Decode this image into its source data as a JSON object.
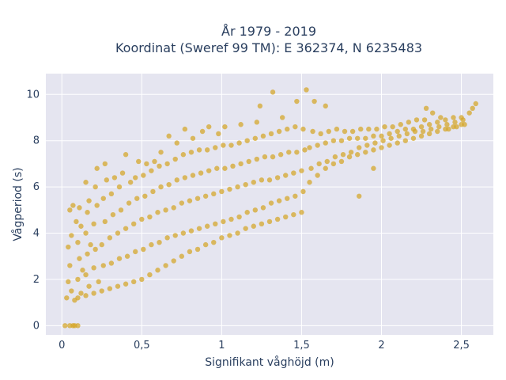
{
  "chart_data": {
    "type": "scatter",
    "title": [
      "År 1979 - 2019",
      "Koordinat (Sweref 99 TM): E 362374, N 6235483"
    ],
    "xlabel": "Signifikant våghöjd (m)",
    "ylabel": "Vågperiod (s)",
    "xlim": [
      -0.1,
      2.7
    ],
    "ylim": [
      -0.4,
      10.9
    ],
    "x_ticks": [
      0,
      0.5,
      1,
      1.5,
      2,
      2.5
    ],
    "x_tick_labels": [
      "0",
      "0,5",
      "1",
      "1,5",
      "2",
      "2,5"
    ],
    "y_ticks": [
      0,
      2,
      4,
      6,
      8,
      10
    ],
    "y_tick_labels": [
      "0",
      "2",
      "4",
      "6",
      "8",
      "10"
    ],
    "grid": true,
    "colors": {
      "marker": "#d4a526",
      "plot_background": "#e5e5f0",
      "grid": "#ffffff",
      "text": "#2a3f5f"
    },
    "series": [
      {
        "values": [
          [
            0.02,
            0.0
          ],
          [
            0.05,
            0.0
          ],
          [
            0.07,
            0.0
          ],
          [
            0.08,
            0.0
          ],
          [
            0.1,
            0.0
          ],
          [
            0.03,
            1.2
          ],
          [
            0.04,
            1.9
          ],
          [
            0.05,
            2.6
          ],
          [
            0.04,
            3.4
          ],
          [
            0.06,
            3.9
          ],
          [
            0.05,
            5.0
          ],
          [
            0.07,
            5.2
          ],
          [
            0.08,
            1.1
          ],
          [
            0.06,
            1.5
          ],
          [
            0.09,
            4.5
          ],
          [
            0.1,
            1.2
          ],
          [
            0.1,
            2.0
          ],
          [
            0.11,
            2.9
          ],
          [
            0.1,
            3.6
          ],
          [
            0.12,
            4.3
          ],
          [
            0.11,
            5.1
          ],
          [
            0.12,
            1.4
          ],
          [
            0.13,
            2.4
          ],
          [
            0.15,
            1.3
          ],
          [
            0.15,
            2.2
          ],
          [
            0.16,
            3.1
          ],
          [
            0.15,
            4.0
          ],
          [
            0.16,
            4.9
          ],
          [
            0.17,
            5.4
          ],
          [
            0.15,
            6.2
          ],
          [
            0.17,
            1.7
          ],
          [
            0.18,
            3.5
          ],
          [
            0.2,
            1.4
          ],
          [
            0.2,
            2.5
          ],
          [
            0.21,
            3.3
          ],
          [
            0.2,
            4.4
          ],
          [
            0.22,
            5.2
          ],
          [
            0.21,
            6.0
          ],
          [
            0.22,
            6.8
          ],
          [
            0.23,
            1.9
          ],
          [
            0.25,
            1.5
          ],
          [
            0.26,
            2.6
          ],
          [
            0.25,
            3.5
          ],
          [
            0.27,
            4.5
          ],
          [
            0.26,
            5.5
          ],
          [
            0.28,
            6.3
          ],
          [
            0.27,
            7.0
          ],
          [
            0.3,
            1.6
          ],
          [
            0.31,
            2.7
          ],
          [
            0.3,
            3.8
          ],
          [
            0.32,
            4.8
          ],
          [
            0.31,
            5.7
          ],
          [
            0.33,
            6.4
          ],
          [
            0.35,
            1.7
          ],
          [
            0.36,
            2.9
          ],
          [
            0.35,
            4.0
          ],
          [
            0.37,
            5.0
          ],
          [
            0.36,
            6.0
          ],
          [
            0.38,
            6.6
          ],
          [
            0.4,
            7.4
          ],
          [
            0.4,
            1.8
          ],
          [
            0.41,
            3.0
          ],
          [
            0.4,
            4.2
          ],
          [
            0.42,
            5.3
          ],
          [
            0.43,
            6.2
          ],
          [
            0.45,
            1.9
          ],
          [
            0.46,
            3.2
          ],
          [
            0.45,
            4.4
          ],
          [
            0.47,
            5.5
          ],
          [
            0.46,
            6.4
          ],
          [
            0.48,
            7.1
          ],
          [
            0.5,
            2.0
          ],
          [
            0.51,
            3.3
          ],
          [
            0.5,
            4.6
          ],
          [
            0.52,
            5.6
          ],
          [
            0.51,
            6.5
          ],
          [
            0.53,
            7.0
          ],
          [
            0.55,
            2.2
          ],
          [
            0.56,
            3.5
          ],
          [
            0.55,
            4.7
          ],
          [
            0.57,
            5.8
          ],
          [
            0.56,
            6.7
          ],
          [
            0.58,
            7.1
          ],
          [
            0.6,
            2.4
          ],
          [
            0.61,
            3.6
          ],
          [
            0.6,
            4.9
          ],
          [
            0.62,
            6.0
          ],
          [
            0.61,
            6.9
          ],
          [
            0.62,
            7.5
          ],
          [
            0.65,
            2.6
          ],
          [
            0.66,
            3.8
          ],
          [
            0.65,
            5.0
          ],
          [
            0.67,
            6.1
          ],
          [
            0.66,
            7.0
          ],
          [
            0.67,
            8.2
          ],
          [
            0.7,
            2.8
          ],
          [
            0.71,
            3.9
          ],
          [
            0.7,
            5.1
          ],
          [
            0.72,
            6.3
          ],
          [
            0.71,
            7.2
          ],
          [
            0.72,
            7.9
          ],
          [
            0.75,
            3.0
          ],
          [
            0.76,
            4.0
          ],
          [
            0.75,
            5.3
          ],
          [
            0.77,
            6.4
          ],
          [
            0.76,
            7.4
          ],
          [
            0.77,
            8.5
          ],
          [
            0.8,
            3.2
          ],
          [
            0.81,
            4.1
          ],
          [
            0.8,
            5.4
          ],
          [
            0.82,
            6.5
          ],
          [
            0.81,
            7.5
          ],
          [
            0.82,
            8.1
          ],
          [
            0.85,
            3.3
          ],
          [
            0.86,
            4.2
          ],
          [
            0.85,
            5.5
          ],
          [
            0.87,
            6.6
          ],
          [
            0.86,
            7.6
          ],
          [
            0.88,
            8.4
          ],
          [
            0.9,
            3.5
          ],
          [
            0.91,
            4.3
          ],
          [
            0.9,
            5.6
          ],
          [
            0.92,
            6.7
          ],
          [
            0.91,
            7.6
          ],
          [
            0.92,
            8.6
          ],
          [
            0.95,
            3.6
          ],
          [
            0.96,
            4.4
          ],
          [
            0.95,
            5.7
          ],
          [
            0.97,
            6.8
          ],
          [
            0.96,
            7.7
          ],
          [
            0.98,
            8.3
          ],
          [
            1.0,
            3.8
          ],
          [
            1.01,
            4.5
          ],
          [
            1.0,
            5.8
          ],
          [
            1.02,
            6.8
          ],
          [
            1.01,
            7.8
          ],
          [
            1.02,
            8.6
          ],
          [
            1.05,
            3.9
          ],
          [
            1.06,
            4.6
          ],
          [
            1.05,
            5.9
          ],
          [
            1.07,
            6.9
          ],
          [
            1.06,
            7.8
          ],
          [
            1.1,
            4.0
          ],
          [
            1.11,
            4.7
          ],
          [
            1.1,
            6.0
          ],
          [
            1.12,
            7.0
          ],
          [
            1.11,
            7.9
          ],
          [
            1.12,
            8.7
          ],
          [
            1.15,
            4.2
          ],
          [
            1.16,
            4.9
          ],
          [
            1.15,
            6.1
          ],
          [
            1.17,
            7.1
          ],
          [
            1.16,
            8.0
          ],
          [
            1.2,
            4.3
          ],
          [
            1.21,
            5.0
          ],
          [
            1.2,
            6.2
          ],
          [
            1.22,
            7.2
          ],
          [
            1.21,
            8.1
          ],
          [
            1.22,
            8.8
          ],
          [
            1.25,
            4.4
          ],
          [
            1.26,
            5.1
          ],
          [
            1.25,
            6.3
          ],
          [
            1.27,
            7.3
          ],
          [
            1.26,
            8.2
          ],
          [
            1.24,
            9.5
          ],
          [
            1.3,
            4.5
          ],
          [
            1.31,
            5.3
          ],
          [
            1.3,
            6.3
          ],
          [
            1.32,
            7.3
          ],
          [
            1.31,
            8.3
          ],
          [
            1.35,
            4.6
          ],
          [
            1.36,
            5.4
          ],
          [
            1.35,
            6.4
          ],
          [
            1.37,
            7.4
          ],
          [
            1.36,
            8.4
          ],
          [
            1.32,
            10.1
          ],
          [
            1.4,
            4.7
          ],
          [
            1.41,
            5.5
          ],
          [
            1.4,
            6.5
          ],
          [
            1.42,
            7.5
          ],
          [
            1.41,
            8.5
          ],
          [
            1.38,
            9.0
          ],
          [
            1.45,
            4.8
          ],
          [
            1.46,
            5.6
          ],
          [
            1.45,
            6.6
          ],
          [
            1.47,
            7.5
          ],
          [
            1.46,
            8.6
          ],
          [
            1.47,
            9.7
          ],
          [
            1.5,
            4.9
          ],
          [
            1.51,
            5.8
          ],
          [
            1.5,
            6.7
          ],
          [
            1.52,
            7.6
          ],
          [
            1.51,
            8.5
          ],
          [
            1.53,
            10.2
          ],
          [
            1.55,
            6.2
          ],
          [
            1.56,
            6.8
          ],
          [
            1.55,
            7.7
          ],
          [
            1.57,
            8.4
          ],
          [
            1.58,
            9.7
          ],
          [
            1.6,
            6.5
          ],
          [
            1.61,
            7.0
          ],
          [
            1.6,
            7.8
          ],
          [
            1.62,
            8.3
          ],
          [
            1.65,
            9.5
          ],
          [
            1.65,
            6.8
          ],
          [
            1.66,
            7.1
          ],
          [
            1.65,
            7.9
          ],
          [
            1.67,
            8.4
          ],
          [
            1.7,
            7.0
          ],
          [
            1.71,
            7.3
          ],
          [
            1.7,
            8.0
          ],
          [
            1.72,
            8.5
          ],
          [
            1.75,
            7.1
          ],
          [
            1.76,
            7.4
          ],
          [
            1.75,
            8.0
          ],
          [
            1.77,
            8.4
          ],
          [
            1.8,
            7.3
          ],
          [
            1.81,
            7.5
          ],
          [
            1.8,
            8.1
          ],
          [
            1.82,
            8.4
          ],
          [
            1.85,
            7.4
          ],
          [
            1.86,
            7.7
          ],
          [
            1.85,
            8.1
          ],
          [
            1.87,
            8.5
          ],
          [
            1.86,
            5.6
          ],
          [
            1.9,
            7.5
          ],
          [
            1.91,
            7.8
          ],
          [
            1.9,
            8.1
          ],
          [
            1.92,
            8.5
          ],
          [
            1.95,
            7.6
          ],
          [
            1.96,
            7.9
          ],
          [
            1.95,
            8.2
          ],
          [
            1.97,
            8.5
          ],
          [
            1.95,
            6.8
          ],
          [
            2.0,
            7.7
          ],
          [
            2.01,
            8.0
          ],
          [
            2.0,
            8.2
          ],
          [
            2.02,
            8.6
          ],
          [
            2.05,
            7.8
          ],
          [
            2.06,
            8.1
          ],
          [
            2.05,
            8.3
          ],
          [
            2.07,
            8.6
          ],
          [
            2.1,
            7.9
          ],
          [
            2.11,
            8.2
          ],
          [
            2.1,
            8.4
          ],
          [
            2.12,
            8.7
          ],
          [
            2.15,
            8.0
          ],
          [
            2.16,
            8.3
          ],
          [
            2.15,
            8.5
          ],
          [
            2.17,
            8.8
          ],
          [
            2.2,
            8.1
          ],
          [
            2.21,
            8.4
          ],
          [
            2.2,
            8.5
          ],
          [
            2.22,
            8.9
          ],
          [
            2.25,
            8.2
          ],
          [
            2.26,
            8.4
          ],
          [
            2.25,
            8.6
          ],
          [
            2.27,
            8.9
          ],
          [
            2.28,
            9.4
          ],
          [
            2.3,
            8.3
          ],
          [
            2.31,
            8.5
          ],
          [
            2.3,
            8.7
          ],
          [
            2.32,
            9.2
          ],
          [
            2.35,
            8.4
          ],
          [
            2.36,
            8.6
          ],
          [
            2.35,
            8.8
          ],
          [
            2.37,
            9.0
          ],
          [
            2.4,
            8.5
          ],
          [
            2.41,
            8.7
          ],
          [
            2.4,
            8.9
          ],
          [
            2.42,
            8.5
          ],
          [
            2.45,
            8.6
          ],
          [
            2.46,
            8.8
          ],
          [
            2.45,
            9.0
          ],
          [
            2.47,
            8.6
          ],
          [
            2.5,
            8.7
          ],
          [
            2.51,
            8.9
          ],
          [
            2.5,
            9.0
          ],
          [
            2.52,
            8.7
          ],
          [
            2.55,
            9.2
          ],
          [
            2.57,
            9.4
          ],
          [
            2.59,
            9.6
          ]
        ]
      }
    ]
  }
}
